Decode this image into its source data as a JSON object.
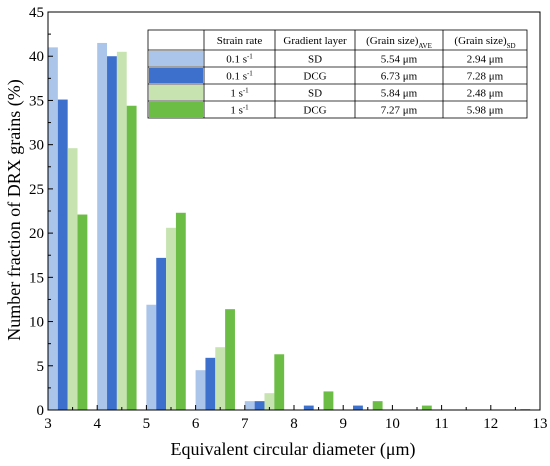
{
  "chart_data": {
    "type": "bar",
    "xlabel": "Equivalent circular diameter (μm)",
    "ylabel": "Number fraction of DRX grains (%)",
    "xlim": [
      3,
      13
    ],
    "ylim": [
      0,
      45
    ],
    "xticks": [
      3,
      4,
      5,
      6,
      7,
      8,
      9,
      10,
      11,
      12,
      13
    ],
    "yticks": [
      0,
      5,
      10,
      15,
      20,
      25,
      30,
      35,
      40,
      45
    ],
    "bin_starts": [
      3,
      4,
      5,
      6,
      7,
      8,
      9,
      10,
      11,
      12
    ],
    "grid": false,
    "legend_position": "top-right table",
    "series": [
      {
        "color": "#aac4ea",
        "values": [
          41.0,
          41.5,
          11.9,
          4.5,
          1.0,
          0.0,
          0.0,
          0.0,
          0.0,
          0.0
        ]
      },
      {
        "color": "#3d6fcc",
        "values": [
          35.1,
          40.0,
          17.2,
          5.9,
          1.0,
          0.5,
          0.5,
          0.0,
          0.0,
          0.0
        ]
      },
      {
        "color": "#c6e3b0",
        "values": [
          29.6,
          40.5,
          20.6,
          7.1,
          1.9,
          0.0,
          0.0,
          0.0,
          0.0,
          0.0
        ]
      },
      {
        "color": "#6cbd45",
        "values": [
          22.1,
          34.4,
          22.3,
          11.4,
          6.3,
          2.1,
          1.0,
          0.5,
          0.0,
          0.1
        ]
      }
    ],
    "table": {
      "headers": [
        "Strain rate",
        "Gradient layer",
        "(Grain size)",
        "(Grain size)"
      ],
      "header_subscripts": [
        "",
        "",
        "AVE",
        "SD"
      ],
      "rows": [
        {
          "rate": "0.1 s",
          "exp": "-1",
          "layer": "SD",
          "avg": "5.54 μm",
          "sd": "2.94 μm"
        },
        {
          "rate": "0.1 s",
          "exp": "-1",
          "layer": "DCG",
          "avg": "6.73 μm",
          "sd": "7.28 μm"
        },
        {
          "rate": "1 s",
          "exp": "-1",
          "layer": "SD",
          "avg": "5.84 μm",
          "sd": "2.48 μm"
        },
        {
          "rate": "1 s",
          "exp": "-1",
          "layer": "DCG",
          "avg": "7.27 μm",
          "sd": "5.98 μm"
        }
      ]
    }
  }
}
